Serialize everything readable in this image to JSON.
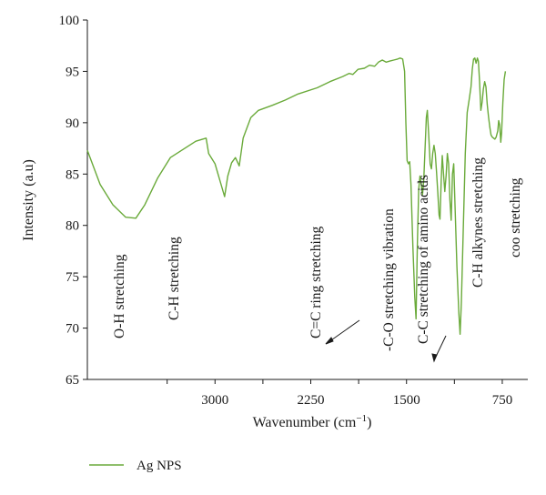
{
  "chart_data": {
    "type": "line",
    "xlabel_main": "Wavenumber (cm",
    "xlabel_sup": "−1",
    "xlabel_close": ")",
    "ylabel": "Intensity (a.u)",
    "xlim": [
      4000,
      550
    ],
    "ylim": [
      65,
      100
    ],
    "grid": false,
    "x_ticks": [
      3000,
      2250,
      1500,
      750
    ],
    "x_tick_labels": [
      "3000",
      "2250",
      "1500",
      "750"
    ],
    "y_ticks": [
      65,
      70,
      75,
      80,
      85,
      90,
      95,
      100
    ],
    "y_tick_labels": [
      "65",
      "70",
      "75",
      "80",
      "85",
      "90",
      "95",
      "100"
    ],
    "legend_position": "bottom-left",
    "series": [
      {
        "name": "Ag NPS",
        "color": "#6aaa3a",
        "points": [
          [
            4000,
            87.3
          ],
          [
            3900,
            84.0
          ],
          [
            3800,
            82.0
          ],
          [
            3700,
            80.8
          ],
          [
            3620,
            80.7
          ],
          [
            3550,
            82.0
          ],
          [
            3450,
            84.6
          ],
          [
            3350,
            86.6
          ],
          [
            3250,
            87.4
          ],
          [
            3150,
            88.2
          ],
          [
            3070,
            88.5
          ],
          [
            3050,
            87.0
          ],
          [
            3000,
            86.0
          ],
          [
            2960,
            84.3
          ],
          [
            2925,
            82.8
          ],
          [
            2900,
            84.8
          ],
          [
            2870,
            86.1
          ],
          [
            2840,
            86.6
          ],
          [
            2810,
            85.8
          ],
          [
            2780,
            88.5
          ],
          [
            2720,
            90.5
          ],
          [
            2660,
            91.2
          ],
          [
            2550,
            91.7
          ],
          [
            2450,
            92.2
          ],
          [
            2350,
            92.8
          ],
          [
            2200,
            93.4
          ],
          [
            2100,
            94.0
          ],
          [
            2000,
            94.5
          ],
          [
            1950,
            94.8
          ],
          [
            1920,
            94.7
          ],
          [
            1880,
            95.2
          ],
          [
            1830,
            95.3
          ],
          [
            1790,
            95.6
          ],
          [
            1750,
            95.5
          ],
          [
            1720,
            95.9
          ],
          [
            1690,
            96.1
          ],
          [
            1660,
            95.9
          ],
          [
            1630,
            96.0
          ],
          [
            1600,
            96.1
          ],
          [
            1570,
            96.2
          ],
          [
            1550,
            96.3
          ],
          [
            1530,
            96.2
          ],
          [
            1515,
            95.0
          ],
          [
            1505,
            90.0
          ],
          [
            1495,
            86.3
          ],
          [
            1485,
            86.0
          ],
          [
            1475,
            86.2
          ],
          [
            1465,
            84.0
          ],
          [
            1450,
            78.0
          ],
          [
            1435,
            73.0
          ],
          [
            1425,
            70.9
          ],
          [
            1415,
            78.0
          ],
          [
            1405,
            83.5
          ],
          [
            1395,
            84.8
          ],
          [
            1385,
            84.0
          ],
          [
            1375,
            83.0
          ],
          [
            1365,
            84.5
          ],
          [
            1355,
            87.5
          ],
          [
            1345,
            90.5
          ],
          [
            1337,
            91.2
          ],
          [
            1325,
            88.5
          ],
          [
            1315,
            86.0
          ],
          [
            1305,
            85.5
          ],
          [
            1295,
            87.0
          ],
          [
            1285,
            87.8
          ],
          [
            1275,
            87.0
          ],
          [
            1265,
            85.2
          ],
          [
            1255,
            83.2
          ],
          [
            1245,
            81.0
          ],
          [
            1238,
            80.6
          ],
          [
            1228,
            84.5
          ],
          [
            1220,
            86.8
          ],
          [
            1210,
            85.0
          ],
          [
            1200,
            83.3
          ],
          [
            1190,
            84.8
          ],
          [
            1180,
            87.0
          ],
          [
            1170,
            86.0
          ],
          [
            1160,
            82.5
          ],
          [
            1150,
            80.5
          ],
          [
            1140,
            85.0
          ],
          [
            1130,
            86.0
          ],
          [
            1120,
            82.0
          ],
          [
            1105,
            76.0
          ],
          [
            1090,
            71.5
          ],
          [
            1080,
            69.4
          ],
          [
            1070,
            72.5
          ],
          [
            1055,
            80.0
          ],
          [
            1040,
            87.0
          ],
          [
            1025,
            91.0
          ],
          [
            1010,
            92.2
          ],
          [
            995,
            93.5
          ],
          [
            985,
            95.2
          ],
          [
            975,
            96.2
          ],
          [
            965,
            96.3
          ],
          [
            955,
            95.8
          ],
          [
            945,
            96.3
          ],
          [
            937,
            96.0
          ],
          [
            928,
            94.0
          ],
          [
            918,
            91.2
          ],
          [
            908,
            92.0
          ],
          [
            898,
            93.3
          ],
          [
            888,
            94.0
          ],
          [
            878,
            93.5
          ],
          [
            868,
            91.8
          ],
          [
            858,
            90.6
          ],
          [
            848,
            89.6
          ],
          [
            838,
            88.8
          ],
          [
            828,
            88.6
          ],
          [
            818,
            88.5
          ],
          [
            808,
            88.4
          ],
          [
            798,
            88.6
          ],
          [
            785,
            89.2
          ],
          [
            778,
            90.2
          ],
          [
            770,
            89.8
          ],
          [
            762,
            88.1
          ],
          [
            755,
            89.0
          ],
          [
            745,
            92.0
          ],
          [
            735,
            94.2
          ],
          [
            725,
            95.0
          ]
        ]
      }
    ],
    "annotations": [
      {
        "text": "O-H stretching",
        "wavenumber": 3620
      },
      {
        "text": "C-H stretching",
        "wavenumber": 2940
      },
      {
        "text": "C=C ring stretching",
        "wavenumber": 1520
      },
      {
        "text": "-C-O stretching vibration",
        "wavenumber": 1345
      },
      {
        "text": "C-C stretching of amino acids",
        "wavenumber": 1160
      },
      {
        "text": "C-H alkynes stretching",
        "wavenumber": 930
      },
      {
        "text": "coo stretching",
        "wavenumber": 750
      }
    ]
  }
}
